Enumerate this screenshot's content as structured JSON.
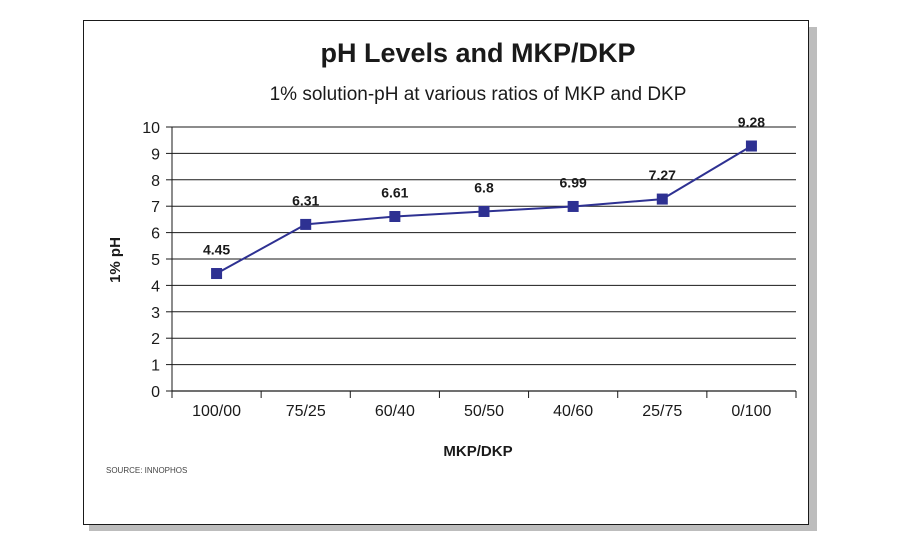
{
  "chart_data": {
    "type": "line",
    "title": "pH Levels and MKP/DKP",
    "subtitle": "1% solution-pH at various ratios of MKP and DKP",
    "xlabel": "MKP/DKP",
    "ylabel": "1% pH",
    "categories": [
      "100/00",
      "75/25",
      "60/40",
      "50/50",
      "40/60",
      "25/75",
      "0/100"
    ],
    "series": [
      {
        "values": [
          4.45,
          6.31,
          6.61,
          6.8,
          6.99,
          7.27,
          9.28
        ],
        "labels": [
          "4.45",
          "6.31",
          "6.61",
          "6.8",
          "6.99",
          "7.27",
          "9.28"
        ]
      }
    ],
    "ylim": [
      0,
      10
    ],
    "yticks": [
      0,
      1,
      2,
      3,
      4,
      5,
      6,
      7,
      8,
      9,
      10
    ],
    "grid": true,
    "line_color": "#2e3192",
    "marker_color": "#2e3192",
    "source": "SOURCE: INNOPHOS"
  }
}
